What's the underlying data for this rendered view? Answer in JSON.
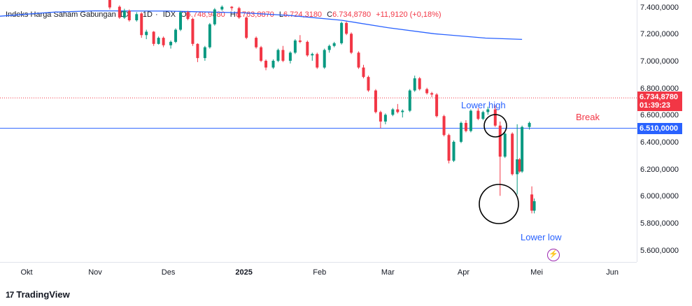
{
  "header": {
    "name": "Indeks Harga Saham Gabungan IDX",
    "interval": "1D",
    "exchange": "IDX",
    "open_label": "O",
    "open": "6.748,9880",
    "high_label": "H",
    "high": "6.763,8870",
    "low_label": "L",
    "low": "6.724,3180",
    "close_label": "C",
    "close": "6.734,8780",
    "change": "+11,9120 (+0,18%)"
  },
  "price_tag": {
    "value": "6.734,8780",
    "countdown": "01:39:23",
    "color": "#f23645"
  },
  "level_tag": {
    "value": "6.510,0000",
    "color": "#2962ff"
  },
  "annotations": {
    "lower_high": "Lower high",
    "lower_low": "Lower low",
    "break": "Break"
  },
  "footer": {
    "brand": "TradingView",
    "mark": "17"
  },
  "colors": {
    "up": "#089981",
    "down": "#f23645",
    "ma": "#2962ff",
    "level": "#2962ff"
  },
  "chart_data": {
    "type": "candlestick",
    "title": "Indeks Harga Saham Gabungan IDX",
    "y_ticks": [
      "7.400,0000",
      "7.200,0000",
      "7.000,0000",
      "6.800,0000",
      "6.600,0000",
      "6.400,0000",
      "6.200,0000",
      "6.000,0000",
      "5.800,0000",
      "5.600,0000"
    ],
    "y_tick_values": [
      7400,
      7200,
      7000,
      6800,
      6600,
      6400,
      6200,
      6000,
      5800,
      5600
    ],
    "ylim": [
      5520,
      7460
    ],
    "x_ticks": [
      "Okt",
      "Nov",
      "Des",
      "2025",
      "Feb",
      "Mar",
      "Apr",
      "Mei",
      "Jun"
    ],
    "x_tick_dates": [
      "2024-10-01",
      "2024-11-01",
      "2024-12-01",
      "2025-01-01",
      "2025-02-01",
      "2025-03-01",
      "2025-04-01",
      "2025-05-01",
      "2025-06-01"
    ],
    "xlim": [
      "2024-09-23",
      "2025-06-11"
    ],
    "horizontal_level": 6510,
    "last_price": 6734.878,
    "moving_average": {
      "dates": [
        "2024-09-23",
        "2024-10-15",
        "2024-11-01",
        "2024-12-01",
        "2025-01-01",
        "2025-01-20",
        "2025-02-10",
        "2025-03-01",
        "2025-03-20",
        "2025-04-10",
        "2025-04-25"
      ],
      "values": [
        7340,
        7370,
        7380,
        7378,
        7365,
        7345,
        7310,
        7255,
        7210,
        7178,
        7168
      ]
    },
    "candles": [
      [
        "2024-11-07",
        7460,
        7470,
        7390,
        7405
      ],
      [
        "2024-11-11",
        7410,
        7420,
        7320,
        7330
      ],
      [
        "2024-11-13",
        7330,
        7395,
        7320,
        7380
      ],
      [
        "2024-11-15",
        7380,
        7390,
        7300,
        7310
      ],
      [
        "2024-11-18",
        7310,
        7370,
        7300,
        7355
      ],
      [
        "2024-11-20",
        7360,
        7370,
        7180,
        7200
      ],
      [
        "2024-11-22",
        7200,
        7240,
        7170,
        7225
      ],
      [
        "2024-11-25",
        7225,
        7230,
        7120,
        7135
      ],
      [
        "2024-11-27",
        7135,
        7190,
        7130,
        7180
      ],
      [
        "2024-11-29",
        7180,
        7190,
        7110,
        7125
      ],
      [
        "2024-12-02",
        7125,
        7160,
        7100,
        7150
      ],
      [
        "2024-12-04",
        7150,
        7250,
        7140,
        7240
      ],
      [
        "2024-12-06",
        7240,
        7380,
        7230,
        7370
      ],
      [
        "2024-12-09",
        7370,
        7380,
        7310,
        7320
      ],
      [
        "2024-12-11",
        7320,
        7330,
        7120,
        7135
      ],
      [
        "2024-12-13",
        7135,
        7140,
        7000,
        7030
      ],
      [
        "2024-12-16",
        7030,
        7120,
        7010,
        7110
      ],
      [
        "2024-12-18",
        7110,
        7290,
        7100,
        7280
      ],
      [
        "2024-12-20",
        7280,
        7400,
        7270,
        7390
      ],
      [
        "2024-12-23",
        7390,
        7420,
        7380,
        7410
      ],
      [
        "2024-12-27",
        7410,
        7415,
        7380,
        7400
      ],
      [
        "2024-12-30",
        7400,
        7410,
        7320,
        7330
      ],
      [
        "2025-01-02",
        7330,
        7340,
        7170,
        7180
      ],
      [
        "2025-01-06",
        7180,
        7190,
        7100,
        7110
      ],
      [
        "2025-01-08",
        7110,
        7120,
        7000,
        7010
      ],
      [
        "2025-01-10",
        7010,
        7020,
        6940,
        6960
      ],
      [
        "2025-01-13",
        6960,
        7020,
        6950,
        7010
      ],
      [
        "2025-01-15",
        7010,
        7100,
        7000,
        7090
      ],
      [
        "2025-01-17",
        7090,
        7120,
        7000,
        7010
      ],
      [
        "2025-01-20",
        7010,
        7080,
        6990,
        7070
      ],
      [
        "2025-01-22",
        7070,
        7170,
        7060,
        7160
      ],
      [
        "2025-01-24",
        7160,
        7200,
        7140,
        7150
      ],
      [
        "2025-01-27",
        7150,
        7160,
        7040,
        7050
      ],
      [
        "2025-01-29",
        7050,
        7070,
        7010,
        7060
      ],
      [
        "2025-01-31",
        7060,
        7070,
        6950,
        6960
      ],
      [
        "2025-02-03",
        6960,
        7100,
        6950,
        7090
      ],
      [
        "2025-02-05",
        7090,
        7130,
        7070,
        7120
      ],
      [
        "2025-02-07",
        7120,
        7150,
        7110,
        7140
      ],
      [
        "2025-02-10",
        7140,
        7300,
        7130,
        7290
      ],
      [
        "2025-02-12",
        7290,
        7300,
        7200,
        7210
      ],
      [
        "2025-02-14",
        7210,
        7220,
        7060,
        7070
      ],
      [
        "2025-02-17",
        7070,
        7080,
        6950,
        6960
      ],
      [
        "2025-02-19",
        6960,
        6980,
        6880,
        6890
      ],
      [
        "2025-02-21",
        6890,
        6900,
        6780,
        6790
      ],
      [
        "2025-02-24",
        6790,
        6800,
        6620,
        6630
      ],
      [
        "2025-02-26",
        6630,
        6640,
        6510,
        6560
      ],
      [
        "2025-02-28",
        6560,
        6620,
        6540,
        6610
      ],
      [
        "2025-03-03",
        6610,
        6660,
        6600,
        6650
      ],
      [
        "2025-03-05",
        6650,
        6690,
        6620,
        6630
      ],
      [
        "2025-03-07",
        6630,
        6650,
        6590,
        6640
      ],
      [
        "2025-03-10",
        6640,
        6800,
        6630,
        6790
      ],
      [
        "2025-03-12",
        6790,
        6900,
        6780,
        6880
      ],
      [
        "2025-03-14",
        6880,
        6890,
        6790,
        6800
      ],
      [
        "2025-03-17",
        6800,
        6810,
        6760,
        6770
      ],
      [
        "2025-03-19",
        6770,
        6780,
        6740,
        6760
      ],
      [
        "2025-03-21",
        6760,
        6770,
        6590,
        6600
      ],
      [
        "2025-03-24",
        6600,
        6610,
        6450,
        6460
      ],
      [
        "2025-03-26",
        6460,
        6470,
        6250,
        6270
      ],
      [
        "2025-03-28",
        6270,
        6420,
        6260,
        6410
      ],
      [
        "2025-03-31",
        6410,
        6560,
        6400,
        6550
      ],
      [
        "2025-04-02",
        6550,
        6570,
        6480,
        6490
      ],
      [
        "2025-04-04",
        6490,
        6650,
        6480,
        6640
      ],
      [
        "2025-04-07",
        6640,
        6660,
        6570,
        6580
      ],
      [
        "2025-04-09",
        6580,
        6640,
        6570,
        6630
      ],
      [
        "2025-04-11",
        6630,
        6670,
        6610,
        6650
      ],
      [
        "2025-04-14",
        6650,
        6680,
        6520,
        6530
      ],
      [
        "2025-04-16",
        6530,
        6560,
        6010,
        6300
      ],
      [
        "2025-04-18",
        6300,
        6480,
        6290,
        6470
      ],
      [
        "2025-04-21",
        6470,
        6480,
        6160,
        6170
      ],
      [
        "2025-04-23",
        6170,
        6540,
        6020,
        6280
      ],
      [
        "2025-04-24",
        6280,
        6290,
        6180,
        6190
      ],
      [
        "2025-04-25",
        6190,
        6530,
        6180,
        6520
      ],
      [
        "2025-04-28",
        6520,
        6560,
        6500,
        6550
      ],
      [
        "2025-04-29",
        6020,
        6080,
        5880,
        5900
      ],
      [
        "2025-04-30",
        5900,
        5990,
        5880,
        5970
      ]
    ]
  }
}
